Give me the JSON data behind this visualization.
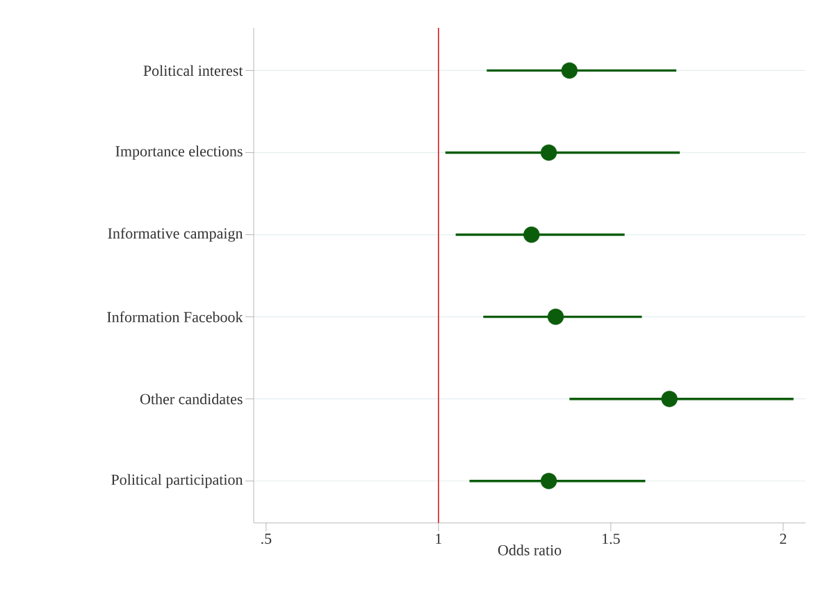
{
  "chart_data": {
    "type": "scatter",
    "orientation": "horizontal",
    "categories": [
      "Political interest",
      "Importance elections",
      "Informative campaign",
      "Information Facebook",
      "Other candidates",
      "Political participation"
    ],
    "values": [
      1.38,
      1.32,
      1.27,
      1.34,
      1.67,
      1.32
    ],
    "errors": [
      [
        1.14,
        1.69
      ],
      [
        1.02,
        1.7
      ],
      [
        1.05,
        1.54
      ],
      [
        1.13,
        1.59
      ],
      [
        1.38,
        2.03
      ],
      [
        1.09,
        1.6
      ]
    ],
    "color": "#0b5d0b",
    "xlim": [
      0.464,
      2.065
    ],
    "xticks": [
      {
        "value": 0.5,
        "label": ".5"
      },
      1,
      1.5,
      2
    ],
    "xlabel": "Odds ratio",
    "ref_lines": [
      {
        "axis": "x",
        "value": 1,
        "color": "#d7191c"
      }
    ],
    "grid": "y"
  }
}
